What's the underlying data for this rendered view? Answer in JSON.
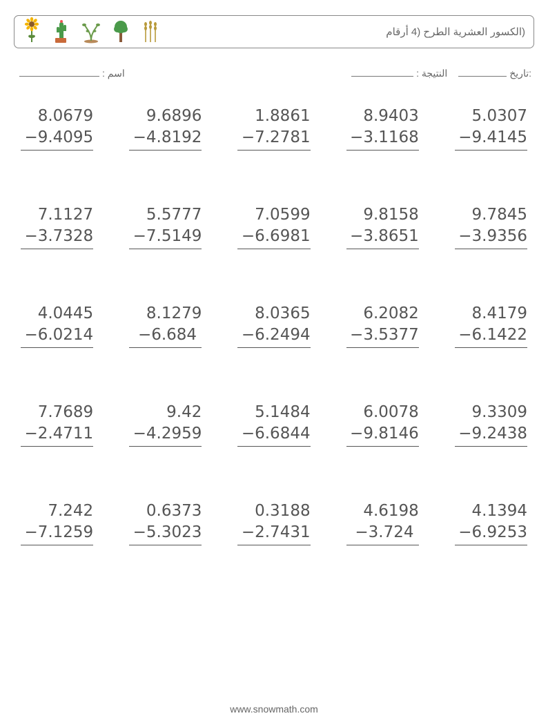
{
  "header": {
    "title": "(الكسور العشرية الطرح (4 أرقام",
    "title_color": "#666666",
    "border_color": "#888888",
    "icons": [
      "sunflower",
      "cactus",
      "sprout",
      "tree",
      "wheat"
    ]
  },
  "meta": {
    "name_label": "اسم :",
    "date_label": ":تاريخ",
    "score_label": "النتيجة :",
    "line_color": "#777777",
    "name_line_width": 116,
    "date_line_width": 70,
    "score_line_width": 90
  },
  "style": {
    "page_bg": "#ffffff",
    "text_color": "#555555",
    "problem_fontsize": 23,
    "meta_fontsize": 14,
    "title_fontsize": 15,
    "underline_color": "#555555",
    "columns": 5,
    "rows": 5,
    "col_gap": 52,
    "row_gap": 78
  },
  "problems": [
    {
      "a": "8.0679",
      "b": "9.4095"
    },
    {
      "a": "9.6896",
      "b": "4.8192"
    },
    {
      "a": "1.8861",
      "b": "7.2781"
    },
    {
      "a": "8.9403",
      "b": "3.1168"
    },
    {
      "a": "5.0307",
      "b": "9.4145"
    },
    {
      "a": "7.1127",
      "b": "3.7328"
    },
    {
      "a": "5.5777",
      "b": "7.5149"
    },
    {
      "a": "7.0599",
      "b": "6.6981"
    },
    {
      "a": "9.8158",
      "b": "3.8651"
    },
    {
      "a": "9.7845",
      "b": "3.9356"
    },
    {
      "a": "4.0445",
      "b": "6.0214"
    },
    {
      "a": "8.1279",
      "b": "6.684"
    },
    {
      "a": "8.0365",
      "b": "6.2494"
    },
    {
      "a": "6.2082",
      "b": "3.5377"
    },
    {
      "a": "8.4179",
      "b": "6.1422"
    },
    {
      "a": "7.7689",
      "b": "2.4711"
    },
    {
      "a": "9.42",
      "b": "4.2959"
    },
    {
      "a": "5.1484",
      "b": "6.6844"
    },
    {
      "a": "6.0078",
      "b": "9.8146"
    },
    {
      "a": "9.3309",
      "b": "9.2438"
    },
    {
      "a": "7.242",
      "b": "7.1259"
    },
    {
      "a": "0.6373",
      "b": "5.3023"
    },
    {
      "a": "0.3188",
      "b": "2.7431"
    },
    {
      "a": "4.6198",
      "b": "3.724"
    },
    {
      "a": "4.1394",
      "b": "6.9253"
    }
  ],
  "operator": "−",
  "footer": {
    "text": "www.snowmath.com",
    "color": "#666666",
    "fontsize": 14
  }
}
